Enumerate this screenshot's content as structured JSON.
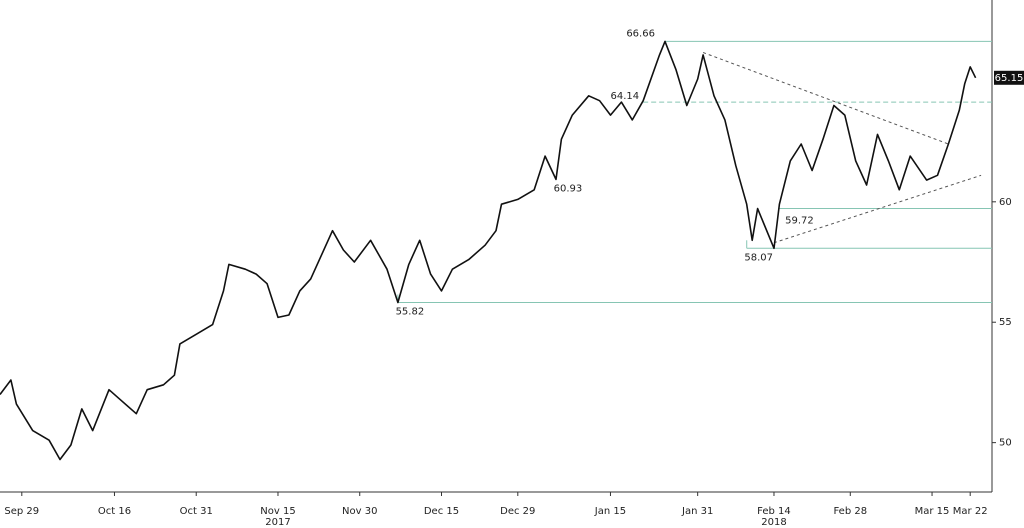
{
  "chart_data": {
    "type": "line",
    "xlim": [
      "2017-09-25",
      "2018-03-26"
    ],
    "ylim": [
      47.95,
      68.38
    ],
    "yticks": [
      50,
      55,
      60
    ],
    "xticks": [
      {
        "value": "2017-09-29",
        "label": "Sep 29"
      },
      {
        "value": "2017-10-16",
        "label": "Oct 16"
      },
      {
        "value": "2017-10-31",
        "label": "Oct 31"
      },
      {
        "value": "2017-11-15",
        "label": "Nov 15"
      },
      {
        "value": "2017-11-30",
        "label": "Nov 30"
      },
      {
        "value": "2017-12-15",
        "label": "Dec 15"
      },
      {
        "value": "2017-12-29",
        "label": "Dec 29"
      },
      {
        "value": "2018-01-15",
        "label": "Jan 15"
      },
      {
        "value": "2018-01-31",
        "label": "Jan 31"
      },
      {
        "value": "2018-02-14",
        "label": "Feb 14"
      },
      {
        "value": "2018-02-28",
        "label": "Feb 28"
      },
      {
        "value": "2018-03-15",
        "label": "Mar 15"
      },
      {
        "value": "2018-03-22",
        "label": "Mar 22"
      }
    ],
    "year_labels": [
      {
        "value": "2017-11-15",
        "label": "2017"
      },
      {
        "value": "2018-02-14",
        "label": "2018"
      }
    ],
    "series": [
      {
        "color": "#111111",
        "x": [
          "2017-09-25",
          "2017-09-27",
          "2017-09-28",
          "2017-10-01",
          "2017-10-04",
          "2017-10-06",
          "2017-10-08",
          "2017-10-10",
          "2017-10-12",
          "2017-10-15",
          "2017-10-17",
          "2017-10-20",
          "2017-10-22",
          "2017-10-25",
          "2017-10-27",
          "2017-10-28",
          "2017-10-31",
          "2017-11-03",
          "2017-11-05",
          "2017-11-06",
          "2017-11-09",
          "2017-11-11",
          "2017-11-13",
          "2017-11-15",
          "2017-11-17",
          "2017-11-19",
          "2017-11-21",
          "2017-11-23",
          "2017-11-25",
          "2017-11-27",
          "2017-11-29",
          "2017-12-02",
          "2017-12-05",
          "2017-12-07",
          "2017-12-09",
          "2017-12-11",
          "2017-12-13",
          "2017-12-15",
          "2017-12-17",
          "2017-12-20",
          "2017-12-23",
          "2017-12-25",
          "2017-12-26",
          "2017-12-29",
          "2018-01-01",
          "2018-01-03",
          "2018-01-05",
          "2018-01-06",
          "2018-01-08",
          "2018-01-11",
          "2018-01-13",
          "2018-01-15",
          "2018-01-17",
          "2018-01-19",
          "2018-01-21",
          "2018-01-24",
          "2018-01-25",
          "2018-01-27",
          "2018-01-29",
          "2018-01-31",
          "2018-02-01",
          "2018-02-03",
          "2018-02-05",
          "2018-02-07",
          "2018-02-09",
          "2018-02-10",
          "2018-02-11",
          "2018-02-14",
          "2018-02-15",
          "2018-02-17",
          "2018-02-19",
          "2018-02-21",
          "2018-02-23",
          "2018-02-25",
          "2018-02-27",
          "2018-03-01",
          "2018-03-03",
          "2018-03-05",
          "2018-03-07",
          "2018-03-09",
          "2018-03-11",
          "2018-03-14",
          "2018-03-16",
          "2018-03-18",
          "2018-03-20",
          "2018-03-21",
          "2018-03-22",
          "2018-03-23"
        ],
        "values": [
          52.0,
          52.6,
          51.6,
          50.5,
          50.1,
          49.3,
          49.9,
          51.4,
          50.5,
          52.2,
          51.8,
          51.2,
          52.2,
          52.4,
          52.8,
          54.1,
          54.5,
          54.9,
          56.3,
          57.4,
          57.2,
          57.0,
          56.6,
          55.2,
          55.3,
          56.3,
          56.8,
          57.8,
          58.8,
          58.0,
          57.5,
          58.4,
          57.2,
          55.82,
          57.4,
          58.4,
          57.0,
          56.3,
          57.2,
          57.6,
          58.2,
          58.8,
          59.9,
          60.1,
          60.5,
          61.9,
          60.93,
          62.6,
          63.6,
          64.4,
          64.2,
          63.6,
          64.14,
          63.4,
          64.2,
          66.1,
          66.66,
          65.5,
          64.0,
          65.1,
          66.1,
          64.4,
          63.4,
          61.5,
          59.9,
          58.4,
          59.72,
          58.07,
          59.9,
          61.7,
          62.4,
          61.3,
          62.6,
          64.0,
          63.6,
          61.7,
          60.7,
          62.8,
          61.7,
          60.5,
          61.9,
          60.9,
          61.1,
          62.4,
          63.8,
          64.9,
          65.6,
          65.15
        ]
      }
    ],
    "levels": [
      {
        "value": 66.66,
        "x": "2018-01-25",
        "line": true,
        "dashed": false,
        "label_side": "above"
      },
      {
        "value": 64.14,
        "x": "2018-01-21",
        "line": true,
        "dashed": true,
        "label_side": "left"
      },
      {
        "value": 60.93,
        "x": "2018-01-05",
        "line": false,
        "dashed": false,
        "label_side": "below"
      },
      {
        "value": 59.72,
        "x": "2018-02-15",
        "line": true,
        "dashed": false,
        "label_side": "right"
      },
      {
        "value": 58.07,
        "x": "2018-02-09",
        "line": true,
        "dashed": false,
        "label_side": "below"
      },
      {
        "value": 55.82,
        "x": "2017-12-07",
        "line": true,
        "dashed": false,
        "label_side": "below"
      }
    ],
    "level_color": "#86c5b3",
    "trendlines": [
      {
        "x": [
          "2018-02-01",
          "2018-03-18"
        ],
        "values": [
          66.2,
          62.4
        ]
      },
      {
        "x": [
          "2018-02-14",
          "2018-03-24"
        ],
        "values": [
          58.3,
          61.1
        ]
      }
    ],
    "last_value": 65.15
  }
}
